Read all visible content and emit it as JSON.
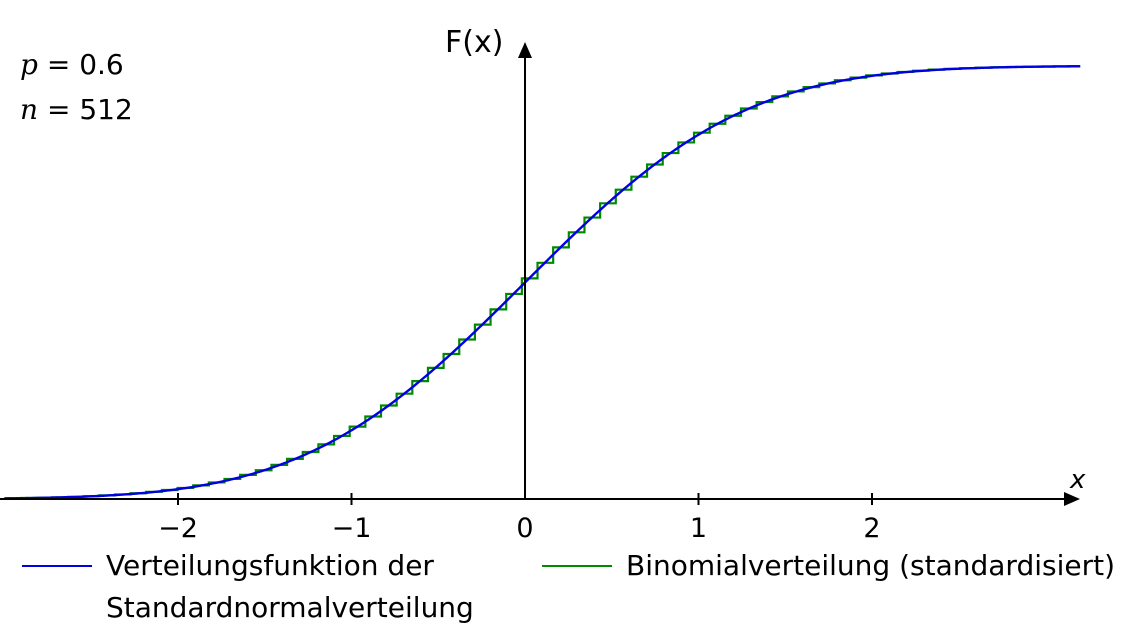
{
  "params": {
    "p": {
      "symbol": "p",
      "value": "0.6"
    },
    "n": {
      "symbol": "n",
      "value": "512"
    }
  },
  "chart_data": {
    "type": "line",
    "ylabel": "F(x)",
    "xlabel": "x",
    "xlim": [
      -3.0,
      3.2
    ],
    "ylim": [
      0,
      1
    ],
    "x_ticks": [
      -2,
      -1,
      0,
      1,
      2
    ],
    "x_tick_labels": [
      "−2",
      "−1",
      "0",
      "1",
      "2"
    ],
    "binomial": {
      "n": 512,
      "p": 0.6
    },
    "series": [
      {
        "name": "Verteilungsfunktion der Standardnormalverteilung",
        "color": "#0000e0",
        "kind": "normal-cdf"
      },
      {
        "name": "Binomialverteilung (standardisiert)",
        "color": "#008a00",
        "kind": "binomial-step"
      }
    ]
  },
  "legend": {
    "normal_line1": "Verteilungsfunktion der",
    "normal_line2": "Standardnormalverteilung",
    "binomial": "Binomialverteilung (standardisiert)"
  }
}
